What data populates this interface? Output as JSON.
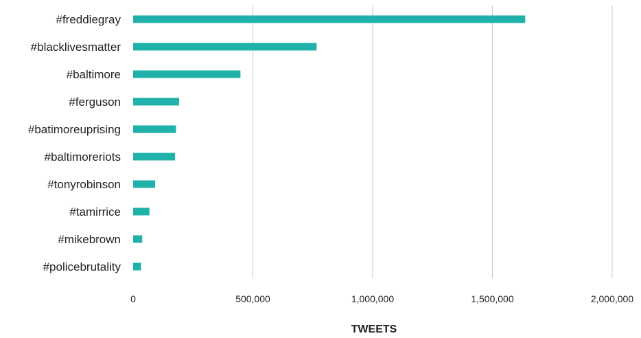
{
  "chart_data": {
    "type": "bar",
    "orientation": "horizontal",
    "categories": [
      "#freddiegray",
      "#blacklivesmatter",
      "#baltimore",
      "#ferguson",
      "#batimoreuprising",
      "#baltimoreriots",
      "#tonyrobinson",
      "#tamirrice",
      "#mikebrown",
      "#policebrutality"
    ],
    "values": [
      1637000,
      766000,
      448000,
      192000,
      179000,
      175000,
      92000,
      68000,
      38000,
      33000
    ],
    "xlabel": "TWEETS",
    "ylabel": "",
    "xlim": [
      0,
      2000000
    ],
    "xticks": [
      0,
      500000,
      1000000,
      1500000,
      2000000
    ],
    "xtick_labels": [
      "0",
      "500,000",
      "1,000,000",
      "1,500,000",
      "2,000,000"
    ],
    "grid": "vertical",
    "bar_color": "#20b2aa",
    "grid_color": "#c8c8c8"
  }
}
